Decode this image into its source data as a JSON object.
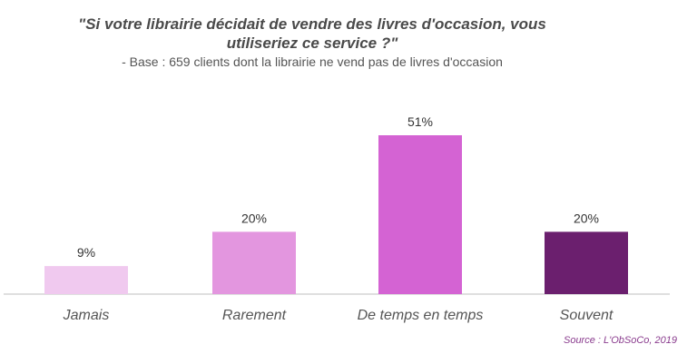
{
  "title_line1": "\"Si votre librairie décidait de vendre des livres d'occasion, vous",
  "title_line2": "utiliseriez ce service ?\"",
  "subtitle": "- Base : 659 clients dont la librairie ne vend pas de livres d'occasion",
  "source": "Source : L'ObSoCo, 2019",
  "chart_data": {
    "type": "bar",
    "title": "\"Si votre librairie décidait de vendre des livres d'occasion, vous utiliseriez ce service ?\"",
    "subtitle": "- Base : 659 clients dont la librairie ne vend pas de livres d'occasion",
    "categories": [
      "Jamais",
      "Rarement",
      "De temps en temps",
      "Souvent"
    ],
    "values": [
      9,
      20,
      51,
      20
    ],
    "data_labels": [
      "9%",
      "20%",
      "51%",
      "20%"
    ],
    "unit": "%",
    "colors": [
      "#f0c9ef",
      "#e396df",
      "#d463d3",
      "#6b1f6e"
    ],
    "ylim": [
      0,
      51
    ],
    "grid": false,
    "legend": "none",
    "xlabel": "",
    "ylabel": ""
  }
}
